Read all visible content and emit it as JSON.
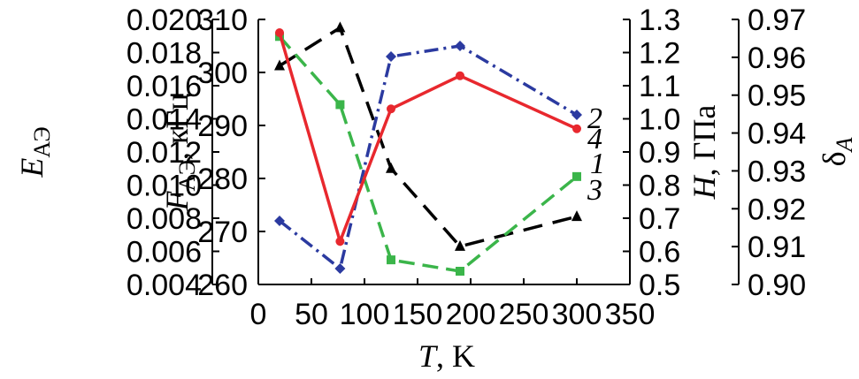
{
  "chart_data": {
    "type": "line",
    "x": [
      20,
      77,
      125,
      190,
      300
    ],
    "xlabel": {
      "symbol": "T",
      "unit": ", K"
    },
    "xlim": [
      0,
      350
    ],
    "xticks": [
      "0",
      "50",
      "100",
      "150",
      "200",
      "250",
      "300",
      "350"
    ],
    "axes": [
      {
        "id": "E",
        "symbol": "E",
        "subscript": "АЭ",
        "unit": "",
        "ticks": [
          "0.020",
          "0.018",
          "0.016",
          "0.014",
          "0.012",
          "0.010",
          "0.008",
          "0.006",
          "0.004"
        ],
        "range": [
          0.004,
          0.02
        ]
      },
      {
        "id": "F",
        "symbol": "F",
        "subscript": "АЭ",
        "unit": ", кГц",
        "ticks": [
          "310",
          "300",
          "290",
          "280",
          "270",
          "260"
        ],
        "range": [
          260,
          310
        ]
      },
      {
        "id": "H",
        "symbol": "H",
        "subscript": "",
        "unit": ", ГПа",
        "ticks": [
          "1.3",
          "1.2",
          "1.1",
          "1.0",
          "0.9",
          "0.8",
          "0.7",
          "0.6",
          "0.5"
        ],
        "range": [
          0.5,
          1.3
        ]
      },
      {
        "id": "delta",
        "symbol": "δ",
        "subscript": "A",
        "unit": "",
        "ticks": [
          "0.97",
          "0.96",
          "0.95",
          "0.94",
          "0.93",
          "0.92",
          "0.91",
          "0.90"
        ],
        "range": [
          0.9,
          0.97
        ]
      }
    ],
    "series": [
      {
        "label": "1",
        "axis": "E",
        "color": "#000000",
        "dash": "22,12",
        "marker": "triangle",
        "x": [
          20,
          77,
          125,
          190,
          300
        ],
        "values": [
          0.0172,
          0.0195,
          0.011,
          0.0063,
          0.0081
        ]
      },
      {
        "label": "2",
        "axis": "F",
        "color": "#2b3aa0",
        "dash": "16,6,3,6",
        "marker": "diamond",
        "x": [
          20,
          77,
          125,
          190,
          300
        ],
        "values": [
          272,
          263,
          303,
          305,
          292
        ]
      },
      {
        "label": "3",
        "axis": "delta",
        "color": "#3bb54a",
        "dash": "18,9",
        "marker": "square",
        "x": [
          20,
          77,
          125,
          190,
          300
        ],
        "values": [
          0.9655,
          0.9475,
          0.9065,
          0.9035,
          0.9285
        ]
      },
      {
        "label": "4",
        "axis": "H",
        "color": "#e8282e",
        "dash": "",
        "marker": "circle",
        "x": [
          20,
          77,
          125,
          190,
          300
        ],
        "values": [
          1.26,
          0.63,
          1.03,
          1.13,
          0.97
        ]
      }
    ]
  }
}
